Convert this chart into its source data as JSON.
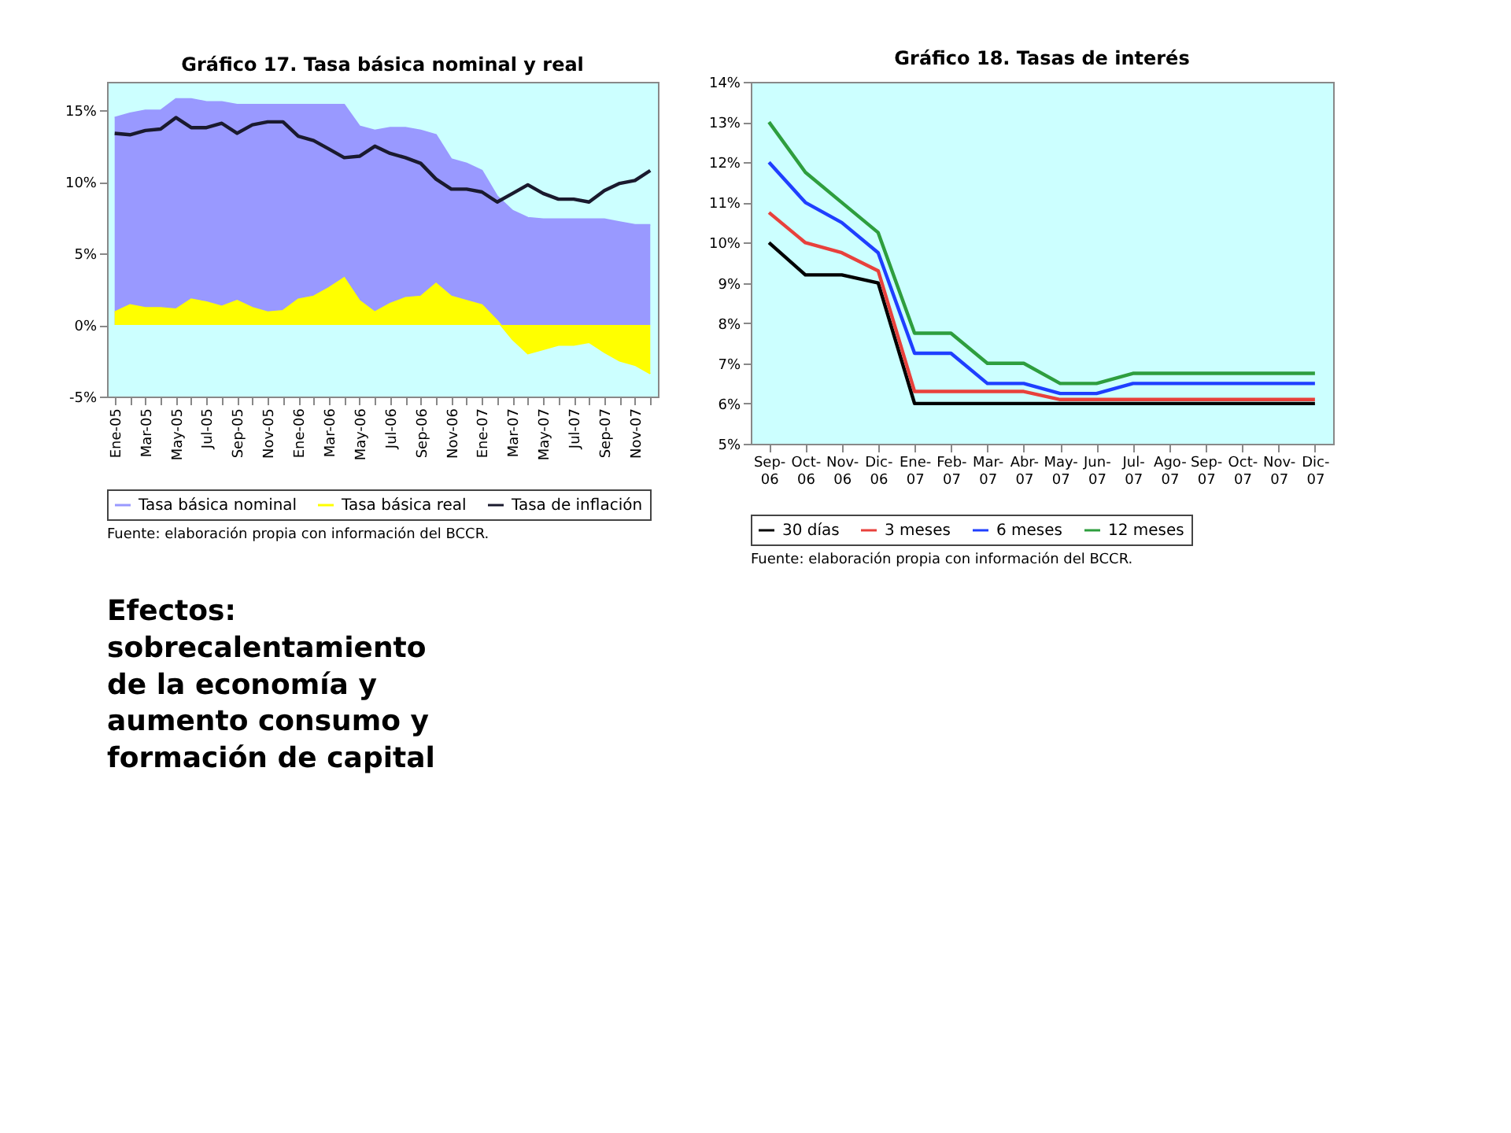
{
  "chart_data": [
    {
      "type": "area",
      "title": "Gráfico 17. Tasa básica nominal y real",
      "categories": [
        "Ene-05",
        null,
        "Mar-05",
        null,
        "May-05",
        null,
        "Jul-05",
        null,
        "Sep-05",
        null,
        "Nov-05",
        null,
        "Ene-06",
        null,
        "Mar-06",
        null,
        "May-06",
        null,
        "Jul-06",
        null,
        "Sep-06",
        null,
        "Nov-06",
        null,
        "Ene-07",
        null,
        "Mar-07",
        null,
        "May-07",
        null,
        "Jul-07",
        null,
        "Sep-07",
        null,
        "Nov-07",
        null
      ],
      "series": [
        {
          "name": "Tasa básica nominal",
          "type": "area",
          "color": "#9999ff",
          "values": [
            14.5,
            14.8,
            15.0,
            15.0,
            15.8,
            15.8,
            15.6,
            15.6,
            15.4,
            15.4,
            15.4,
            15.4,
            15.4,
            15.4,
            15.4,
            15.4,
            13.9,
            13.6,
            13.8,
            13.8,
            13.6,
            13.3,
            11.6,
            11.3,
            10.8,
            9.0,
            8.0,
            7.5,
            7.4,
            7.4,
            7.4,
            7.4,
            7.4,
            7.2,
            7.0,
            7.0
          ]
        },
        {
          "name": "Tasa básica real",
          "type": "area",
          "color": "#ffff00",
          "values": [
            0.9,
            1.4,
            1.2,
            1.2,
            1.1,
            1.8,
            1.6,
            1.3,
            1.7,
            1.2,
            0.9,
            1.0,
            1.8,
            2.0,
            2.6,
            3.3,
            1.7,
            0.9,
            1.5,
            1.9,
            2.0,
            2.9,
            2.0,
            1.7,
            1.4,
            0.3,
            -1.0,
            -2.0,
            -1.7,
            -1.4,
            -1.4,
            -1.2,
            -1.9,
            -2.5,
            -2.8,
            -3.4
          ]
        },
        {
          "name": "Tasa de inflación",
          "type": "line",
          "color": "#1a1a2e",
          "values": [
            13.4,
            13.3,
            13.6,
            13.7,
            14.5,
            13.8,
            13.8,
            14.1,
            13.4,
            14.0,
            14.2,
            14.2,
            13.2,
            12.9,
            12.3,
            11.7,
            11.8,
            12.5,
            12.0,
            11.7,
            11.3,
            10.2,
            9.5,
            9.5,
            9.3,
            8.6,
            9.2,
            9.8,
            9.2,
            8.8,
            8.8,
            8.6,
            9.4,
            9.9,
            10.1,
            10.8
          ]
        }
      ],
      "ylim": [
        -5,
        17
      ],
      "yticks": [
        {
          "value": -5,
          "label": "-5%"
        },
        {
          "value": 0,
          "label": "0%"
        },
        {
          "value": 5,
          "label": "5%"
        },
        {
          "value": 10,
          "label": "10%"
        },
        {
          "value": 15,
          "label": "15%"
        }
      ],
      "grid": false,
      "legend": "bottom",
      "annotations": [
        "Fuente: elaboración propia con información del BCCR."
      ]
    },
    {
      "type": "other",
      "annotations": [
        "Efectos: sobrecalentamiento de la economía y aumento consumo y formación de capital"
      ]
    },
    {
      "type": "line",
      "title": "Gráfico 18. Tasas de interés",
      "categories": [
        "Sep-06",
        "Oct-06",
        "Nov-06",
        "Dic-06",
        "Ene-07",
        "Feb-07",
        "Mar-07",
        "Abr-07",
        "May-07",
        "Jun-07",
        "Jul-07",
        "Ago-07",
        "Sep-07",
        "Oct-07",
        "Nov-07",
        "Dic-07"
      ],
      "series": [
        {
          "name": "30 días",
          "color": "#000000",
          "values": [
            10.0,
            9.2,
            9.2,
            9.0,
            6.0,
            6.0,
            6.0,
            6.0,
            6.0,
            6.0,
            6.0,
            6.0,
            6.0,
            6.0,
            6.0,
            6.0
          ]
        },
        {
          "name": "3 meses",
          "color": "#e8413c",
          "values": [
            10.75,
            10.0,
            9.75,
            9.3,
            6.3,
            6.3,
            6.3,
            6.3,
            6.1,
            6.1,
            6.1,
            6.1,
            6.1,
            6.1,
            6.1,
            6.1
          ]
        },
        {
          "name": "6 meses",
          "color": "#1f3fff",
          "values": [
            12.0,
            11.0,
            10.5,
            9.75,
            7.25,
            7.25,
            6.5,
            6.5,
            6.25,
            6.25,
            6.5,
            6.5,
            6.5,
            6.5,
            6.5,
            6.5
          ]
        },
        {
          "name": "12 meses",
          "color": "#2e9e3e",
          "values": [
            13.0,
            11.75,
            11.0,
            10.25,
            7.75,
            7.75,
            7.0,
            7.0,
            6.5,
            6.5,
            6.75,
            6.75,
            6.75,
            6.75,
            6.75,
            6.75
          ]
        }
      ],
      "ylim": [
        5,
        14
      ],
      "yticks": [
        {
          "value": 5,
          "label": "5%"
        },
        {
          "value": 6,
          "label": "6%"
        },
        {
          "value": 7,
          "label": "7%"
        },
        {
          "value": 8,
          "label": "8%"
        },
        {
          "value": 9,
          "label": "9%"
        },
        {
          "value": 10,
          "label": "10%"
        },
        {
          "value": 11,
          "label": "11%"
        },
        {
          "value": 12,
          "label": "12%"
        },
        {
          "value": 13,
          "label": "13%"
        },
        {
          "value": 14,
          "label": "14%"
        }
      ],
      "grid": false,
      "legend": "bottom",
      "annotations": [
        "Fuente: elaboración propia con información del BCCR."
      ]
    }
  ]
}
